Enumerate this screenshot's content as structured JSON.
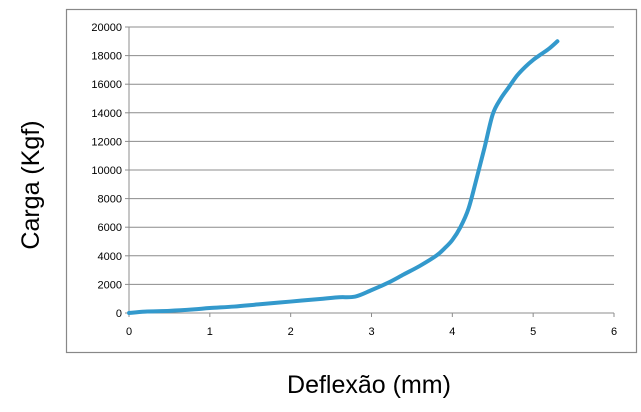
{
  "chart_data": {
    "type": "line",
    "title": "",
    "xlabel": "Deflexão (mm)",
    "ylabel": "Carga (Kgf)",
    "xlim": [
      0,
      6
    ],
    "ylim": [
      0,
      20000
    ],
    "x_ticks": [
      0,
      1,
      2,
      3,
      4,
      5,
      6
    ],
    "y_ticks": [
      0,
      2000,
      4000,
      6000,
      8000,
      10000,
      12000,
      14000,
      16000,
      18000,
      20000
    ],
    "grid": "horizontal",
    "legend": "none",
    "series": [
      {
        "color": "#3399cc",
        "x": [
          0,
          0.2,
          0.5,
          0.8,
          1.0,
          1.3,
          1.6,
          2.0,
          2.4,
          2.6,
          2.8,
          3.0,
          3.2,
          3.4,
          3.6,
          3.8,
          3.9,
          4.0,
          4.1,
          4.2,
          4.3,
          4.4,
          4.5,
          4.6,
          4.7,
          4.8,
          4.9,
          5.0,
          5.1,
          5.2,
          5.3
        ],
        "y": [
          0,
          100,
          150,
          250,
          350,
          450,
          600,
          800,
          1000,
          1100,
          1150,
          1600,
          2100,
          2700,
          3300,
          4000,
          4500,
          5100,
          6000,
          7300,
          9400,
          11600,
          13900,
          15000,
          15800,
          16600,
          17200,
          17700,
          18100,
          18500,
          19000
        ]
      }
    ]
  }
}
